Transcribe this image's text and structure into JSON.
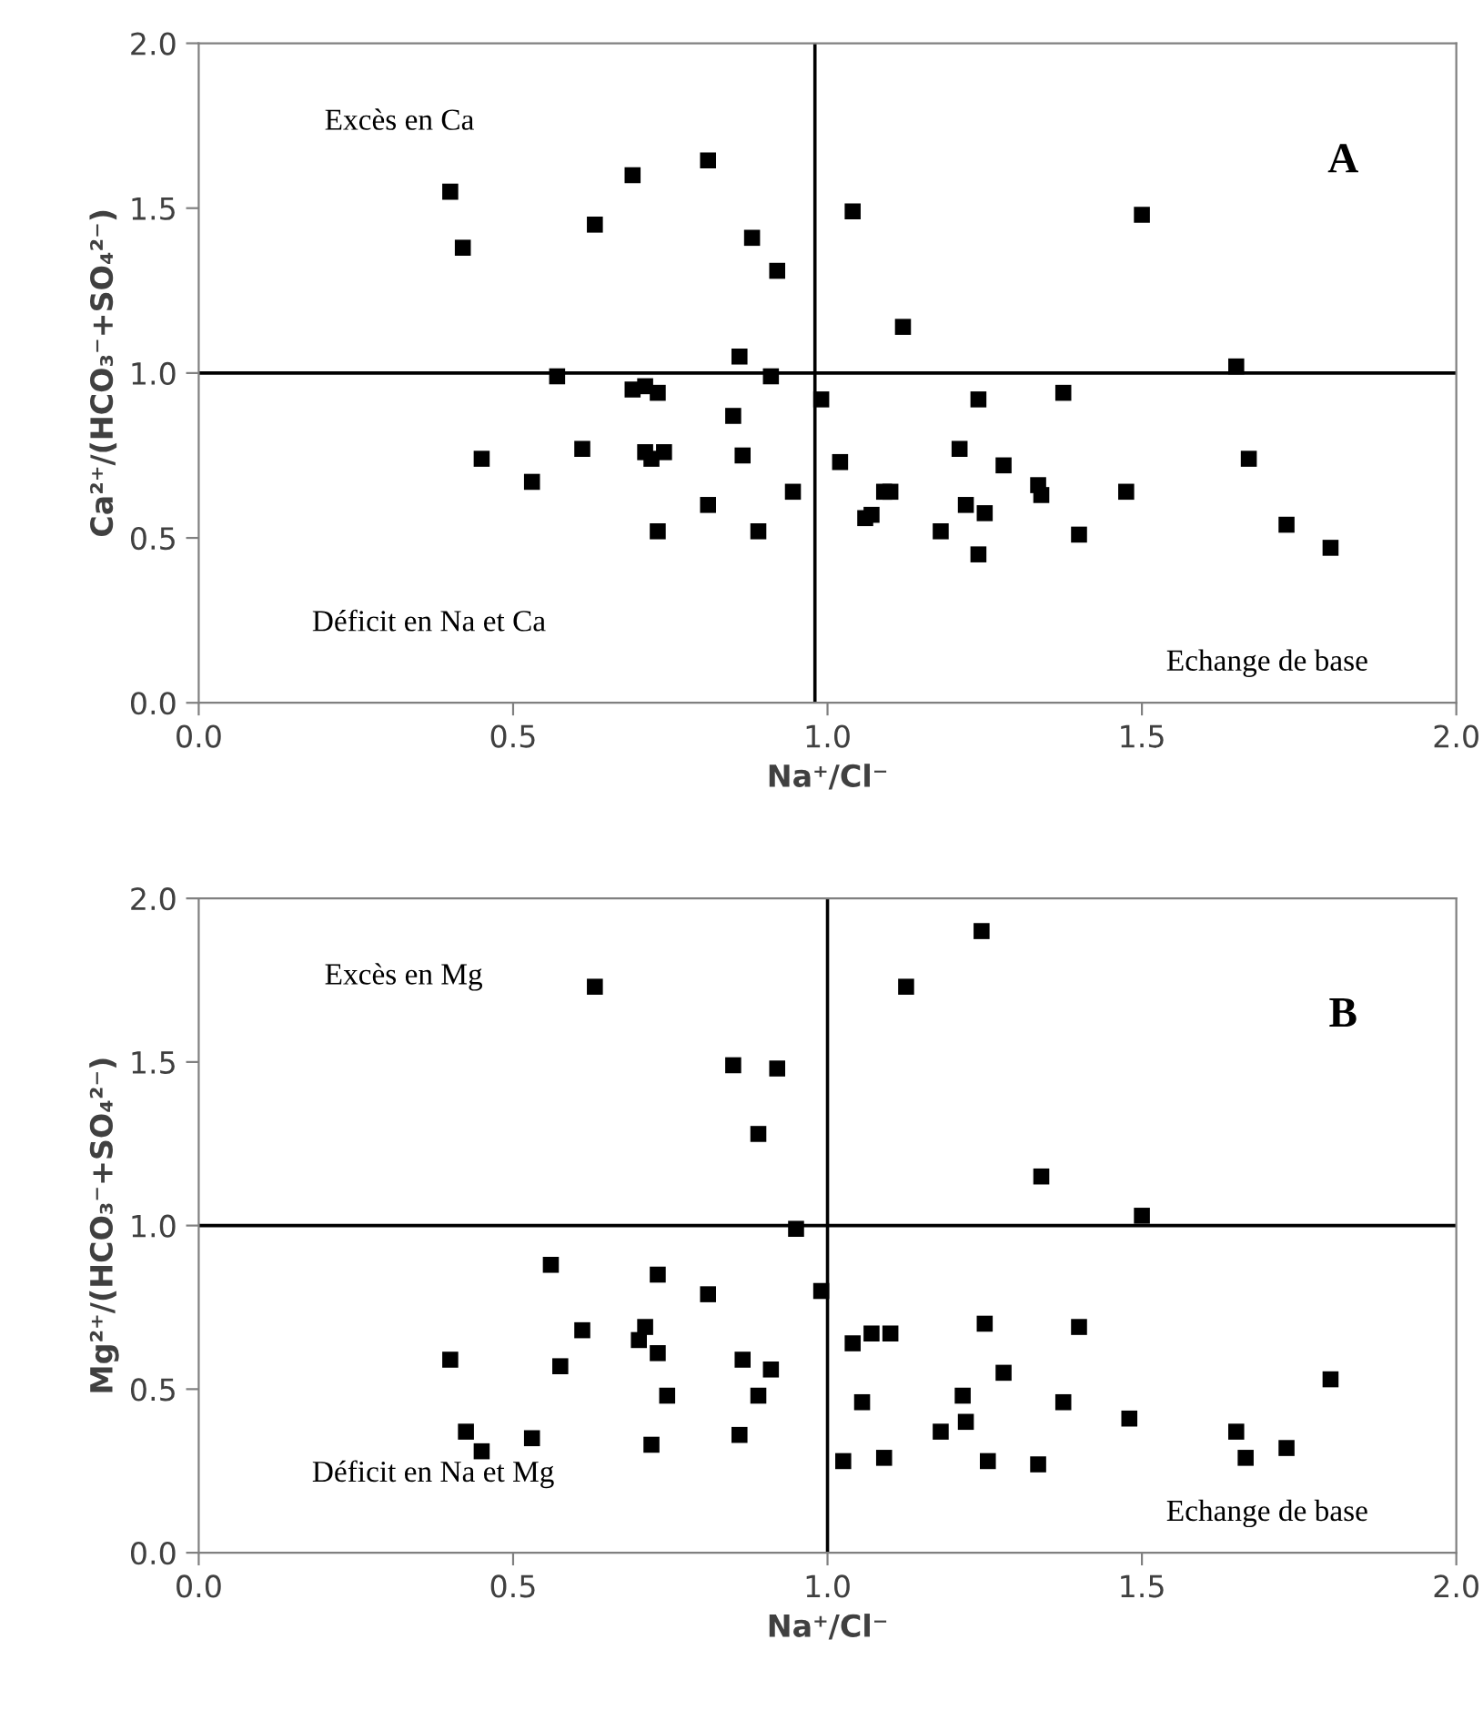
{
  "chart_data": [
    {
      "type": "scatter",
      "xlabel": "Na⁺/Cl⁻",
      "ylabel": "Ca²⁺/(HCO₃⁻+SO₄²⁻)",
      "marker": "square",
      "grid": false,
      "legend": false,
      "xlim": [
        0,
        2
      ],
      "ylim": [
        0,
        2
      ],
      "xticks": [
        {
          "value": 0,
          "label": "0.0"
        },
        {
          "value": 0.5,
          "label": "0.5"
        },
        {
          "value": 1,
          "label": "1.0"
        },
        {
          "value": 1.5,
          "label": "1.5"
        },
        {
          "value": 2,
          "label": "2.0"
        }
      ],
      "yticks": [
        {
          "value": 0,
          "label": "0.0"
        },
        {
          "value": 0.5,
          "label": "0.5"
        },
        {
          "value": 1,
          "label": "1.0"
        },
        {
          "value": 1.5,
          "label": "1.5"
        },
        {
          "value": 2,
          "label": "2.0"
        }
      ],
      "ref_lines": [
        {
          "axis": "y",
          "value": 1.0,
          "color": "#000000"
        },
        {
          "axis": "x",
          "value": 0.98,
          "color": "#000000"
        }
      ],
      "annotations": [
        "Excès en Ca",
        "A",
        "Déficit en Na et Ca",
        "Echange de base"
      ],
      "series": [
        {
          "color": "#000000",
          "x": [
            0.4,
            0.42,
            0.45,
            0.53,
            0.63,
            0.57,
            0.61,
            0.69,
            0.69,
            0.71,
            0.73,
            0.71,
            0.72,
            0.74,
            0.73,
            0.81,
            0.81,
            0.85,
            0.86,
            0.865,
            0.88,
            0.89,
            0.91,
            0.92,
            0.945,
            1.04,
            0.99,
            1.12,
            1.02,
            1.06,
            1.07,
            1.09,
            1.1,
            1.21,
            1.24,
            1.18,
            1.22,
            1.25,
            1.24,
            1.28,
            1.335,
            1.34,
            1.375,
            1.4,
            1.475,
            1.5,
            1.65,
            1.67,
            1.73,
            1.8
          ],
          "values": [
            1.55,
            1.38,
            0.74,
            0.67,
            1.45,
            0.99,
            0.77,
            1.6,
            0.95,
            0.96,
            0.94,
            0.76,
            0.74,
            0.76,
            0.52,
            1.645,
            0.6,
            0.87,
            1.05,
            0.75,
            1.41,
            0.52,
            0.99,
            1.31,
            0.64,
            1.49,
            0.92,
            1.14,
            0.73,
            0.56,
            0.57,
            0.64,
            0.64,
            0.77,
            0.92,
            0.52,
            0.6,
            0.575,
            0.45,
            0.72,
            0.66,
            0.63,
            0.94,
            0.51,
            0.64,
            1.48,
            1.02,
            0.74,
            0.54,
            0.47
          ]
        }
      ]
    },
    {
      "type": "scatter",
      "xlabel": "Na⁺/Cl⁻",
      "ylabel": "Mg²⁺/(HCO₃⁻+SO₄²⁻)",
      "marker": "square",
      "grid": false,
      "legend": false,
      "xlim": [
        0,
        2
      ],
      "ylim": [
        0,
        2
      ],
      "xticks": [
        {
          "value": 0,
          "label": "0.0"
        },
        {
          "value": 0.5,
          "label": "0.5"
        },
        {
          "value": 1,
          "label": "1.0"
        },
        {
          "value": 1.5,
          "label": "1.5"
        },
        {
          "value": 2,
          "label": "2.0"
        }
      ],
      "yticks": [
        {
          "value": 0,
          "label": "0.0"
        },
        {
          "value": 0.5,
          "label": "0.5"
        },
        {
          "value": 1,
          "label": "1.0"
        },
        {
          "value": 1.5,
          "label": "1.5"
        },
        {
          "value": 2,
          "label": "2.0"
        }
      ],
      "ref_lines": [
        {
          "axis": "y",
          "value": 1.0,
          "color": "#000000"
        },
        {
          "axis": "x",
          "value": 1.0,
          "color": "#000000"
        }
      ],
      "annotations": [
        "Excès en Mg",
        "B",
        "Déficit en Na et Mg",
        "Echange de base"
      ],
      "series": [
        {
          "color": "#000000",
          "x": [
            0.4,
            0.425,
            0.45,
            0.53,
            0.56,
            0.575,
            0.61,
            0.63,
            0.7,
            0.71,
            0.73,
            0.73,
            0.745,
            0.72,
            0.81,
            0.85,
            0.92,
            0.89,
            0.865,
            0.86,
            0.89,
            0.91,
            0.95,
            0.99,
            1.245,
            1.125,
            1.34,
            1.5,
            1.04,
            1.07,
            1.1,
            1.25,
            1.4,
            1.28,
            1.055,
            1.215,
            1.22,
            1.18,
            1.025,
            1.09,
            1.255,
            1.335,
            1.375,
            1.48,
            1.65,
            1.665,
            1.73,
            1.8
          ],
          "values": [
            0.59,
            0.37,
            0.31,
            0.35,
            0.88,
            0.57,
            0.68,
            1.73,
            0.65,
            0.69,
            0.61,
            0.85,
            0.48,
            0.33,
            0.79,
            1.49,
            1.48,
            1.28,
            0.59,
            0.36,
            0.48,
            0.56,
            0.99,
            0.8,
            1.9,
            1.73,
            1.15,
            1.03,
            0.64,
            0.67,
            0.67,
            0.7,
            0.69,
            0.55,
            0.46,
            0.48,
            0.4,
            0.37,
            0.28,
            0.29,
            0.28,
            0.27,
            0.46,
            0.41,
            0.37,
            0.29,
            0.32,
            0.53
          ]
        }
      ]
    }
  ]
}
